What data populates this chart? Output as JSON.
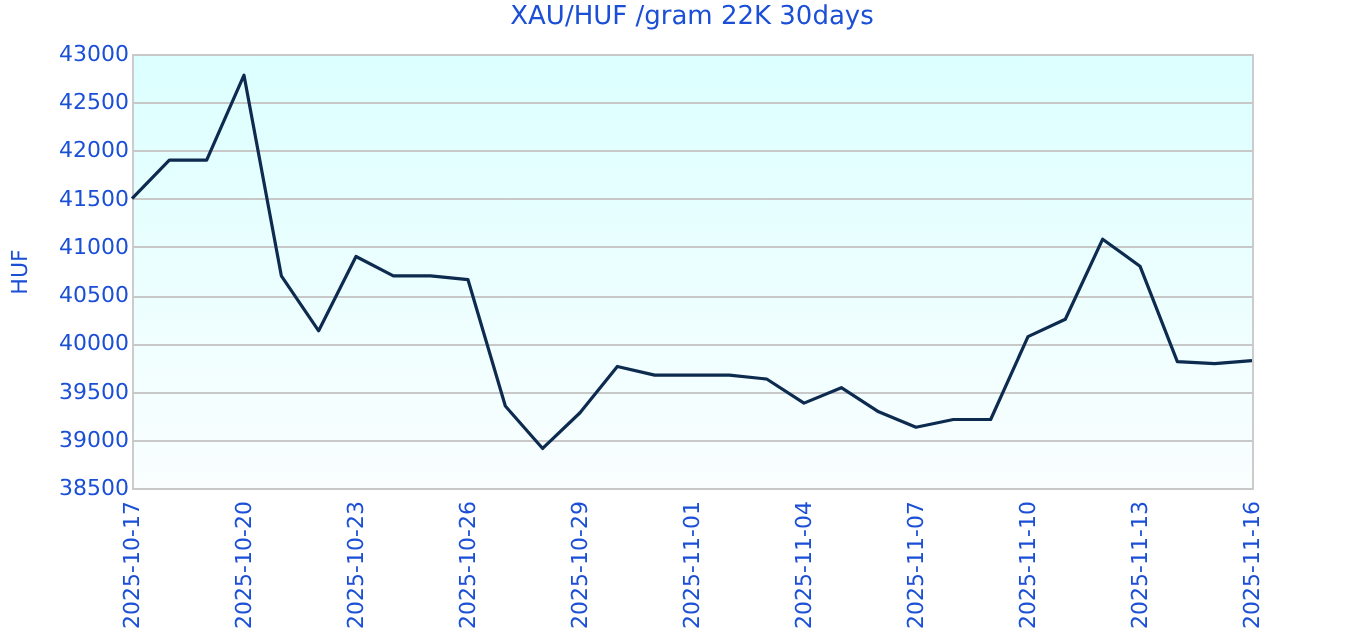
{
  "chart_data": {
    "type": "line",
    "title": "XAU/HUF /gram 22K 30days",
    "ylabel": "HUF",
    "x": [
      "2025-10-17",
      "2025-10-18",
      "2025-10-19",
      "2025-10-20",
      "2025-10-21",
      "2025-10-22",
      "2025-10-23",
      "2025-10-24",
      "2025-10-25",
      "2025-10-26",
      "2025-10-27",
      "2025-10-28",
      "2025-10-29",
      "2025-10-30",
      "2025-10-31",
      "2025-11-01",
      "2025-11-02",
      "2025-11-03",
      "2025-11-04",
      "2025-11-05",
      "2025-11-06",
      "2025-11-07",
      "2025-11-08",
      "2025-11-09",
      "2025-11-10",
      "2025-11-11",
      "2025-11-12",
      "2025-11-13",
      "2025-11-14",
      "2025-11-15",
      "2025-11-16"
    ],
    "series": [
      {
        "color": "#0d2a4f",
        "values": [
          41500,
          41900,
          41900,
          42780,
          40700,
          40130,
          40900,
          40700,
          40700,
          40660,
          39350,
          38910,
          39280,
          39760,
          39670,
          39670,
          39670,
          39630,
          39380,
          39540,
          39290,
          39130,
          39210,
          39210,
          40070,
          40250,
          41080,
          40800,
          39810,
          39790,
          39820
        ]
      }
    ],
    "xlim": [
      "2025-10-17",
      "2025-11-16"
    ],
    "xticks": [
      "2025-10-17",
      "2025-10-20",
      "2025-10-23",
      "2025-10-26",
      "2025-10-29",
      "2025-11-01",
      "2025-11-04",
      "2025-11-07",
      "2025-11-10",
      "2025-11-13",
      "2025-11-16"
    ],
    "ylim": [
      38500,
      43000
    ],
    "yticks": [
      38500,
      39000,
      39500,
      40000,
      40500,
      41000,
      41500,
      42000,
      42500,
      43000
    ],
    "grid": "y",
    "legend": false,
    "marker": "none",
    "line_style": "solid"
  }
}
